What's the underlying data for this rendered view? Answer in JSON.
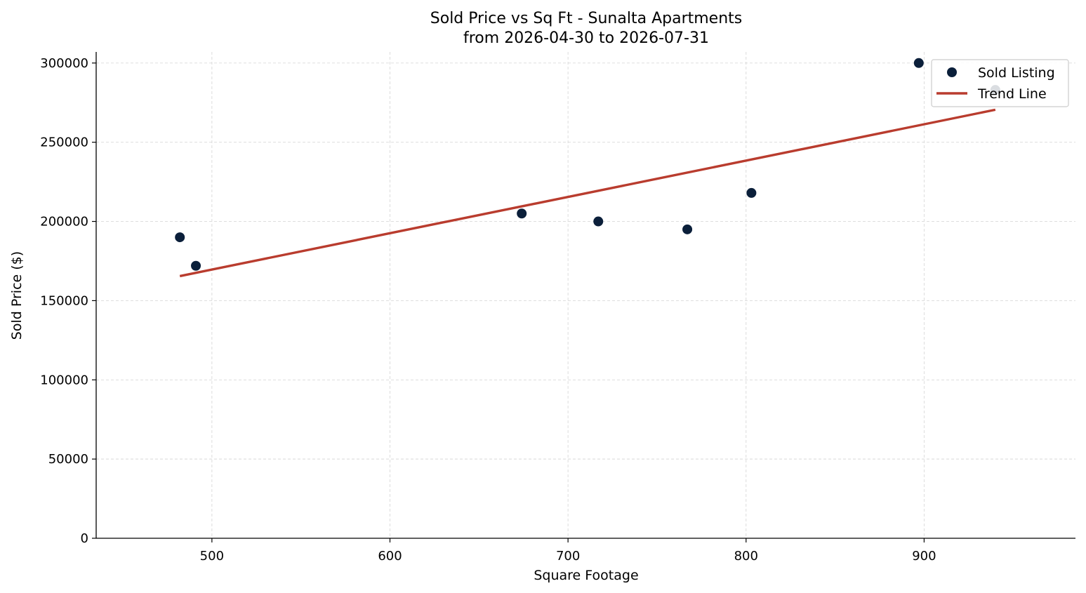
{
  "chart_data": {
    "type": "scatter",
    "title": "Sold Price vs Sq Ft - Sunalta Apartments",
    "subtitle": "from 2026-04-30 to 2026-07-31",
    "xlabel": "Square Footage",
    "ylabel": "Sold Price ($)",
    "xlim": [
      435,
      985
    ],
    "ylim": [
      0,
      307000
    ],
    "x_ticks": [
      500,
      600,
      700,
      800,
      900
    ],
    "y_ticks": [
      0,
      50000,
      100000,
      150000,
      200000,
      250000,
      300000
    ],
    "grid": true,
    "legend_position": "top-right",
    "series": [
      {
        "name": "Sold Listing",
        "kind": "scatter",
        "color": "#0b1f3a",
        "points": [
          {
            "x": 482,
            "y": 190000
          },
          {
            "x": 491,
            "y": 172000
          },
          {
            "x": 674,
            "y": 205000
          },
          {
            "x": 717,
            "y": 200000
          },
          {
            "x": 767,
            "y": 195000
          },
          {
            "x": 803,
            "y": 218000
          },
          {
            "x": 897,
            "y": 300000
          },
          {
            "x": 940,
            "y": 283000
          }
        ]
      },
      {
        "name": "Trend Line",
        "kind": "line",
        "color": "#b93c2e",
        "points": [
          {
            "x": 482,
            "y": 165500
          },
          {
            "x": 940,
            "y": 270500
          }
        ]
      }
    ]
  }
}
